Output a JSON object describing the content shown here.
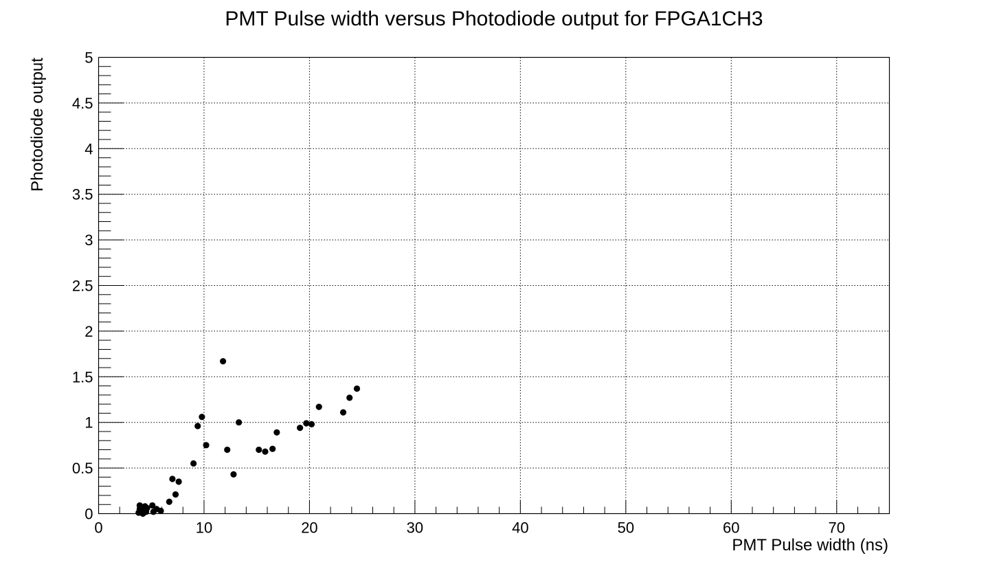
{
  "chart_data": {
    "type": "scatter",
    "title": "PMT Pulse width versus Photodiode output for FPGA1CH3",
    "xlabel": "PMT Pulse width (ns)",
    "ylabel": "Photodiode output",
    "xlim": [
      0,
      75
    ],
    "ylim": [
      0,
      5
    ],
    "x_ticks": [
      0,
      10,
      20,
      30,
      40,
      50,
      60,
      70
    ],
    "y_ticks": [
      0,
      0.5,
      1,
      1.5,
      2,
      2.5,
      3,
      3.5,
      4,
      4.5,
      5
    ],
    "grid": true,
    "series": [
      {
        "name": "FPGA1CH3",
        "points": [
          [
            3.8,
            0.01
          ],
          [
            3.9,
            0.05
          ],
          [
            3.9,
            0.09
          ],
          [
            4.0,
            0.03
          ],
          [
            4.1,
            0.07
          ],
          [
            4.2,
            0.0
          ],
          [
            4.3,
            0.04
          ],
          [
            4.4,
            0.08
          ],
          [
            4.5,
            0.02
          ],
          [
            4.6,
            0.06
          ],
          [
            5.1,
            0.09
          ],
          [
            5.2,
            0.02
          ],
          [
            5.5,
            0.05
          ],
          [
            5.9,
            0.03
          ],
          [
            6.7,
            0.13
          ],
          [
            7.0,
            0.38
          ],
          [
            7.3,
            0.21
          ],
          [
            7.6,
            0.35
          ],
          [
            9.0,
            0.55
          ],
          [
            9.4,
            0.96
          ],
          [
            9.8,
            1.06
          ],
          [
            10.2,
            0.75
          ],
          [
            11.8,
            1.67
          ],
          [
            12.2,
            0.7
          ],
          [
            12.8,
            0.43
          ],
          [
            13.3,
            1.0
          ],
          [
            15.2,
            0.7
          ],
          [
            15.8,
            0.68
          ],
          [
            16.5,
            0.71
          ],
          [
            16.9,
            0.89
          ],
          [
            19.1,
            0.94
          ],
          [
            19.7,
            0.99
          ],
          [
            20.2,
            0.98
          ],
          [
            20.9,
            1.17
          ],
          [
            23.2,
            1.11
          ],
          [
            23.8,
            1.27
          ],
          [
            24.5,
            1.37
          ]
        ]
      }
    ]
  }
}
